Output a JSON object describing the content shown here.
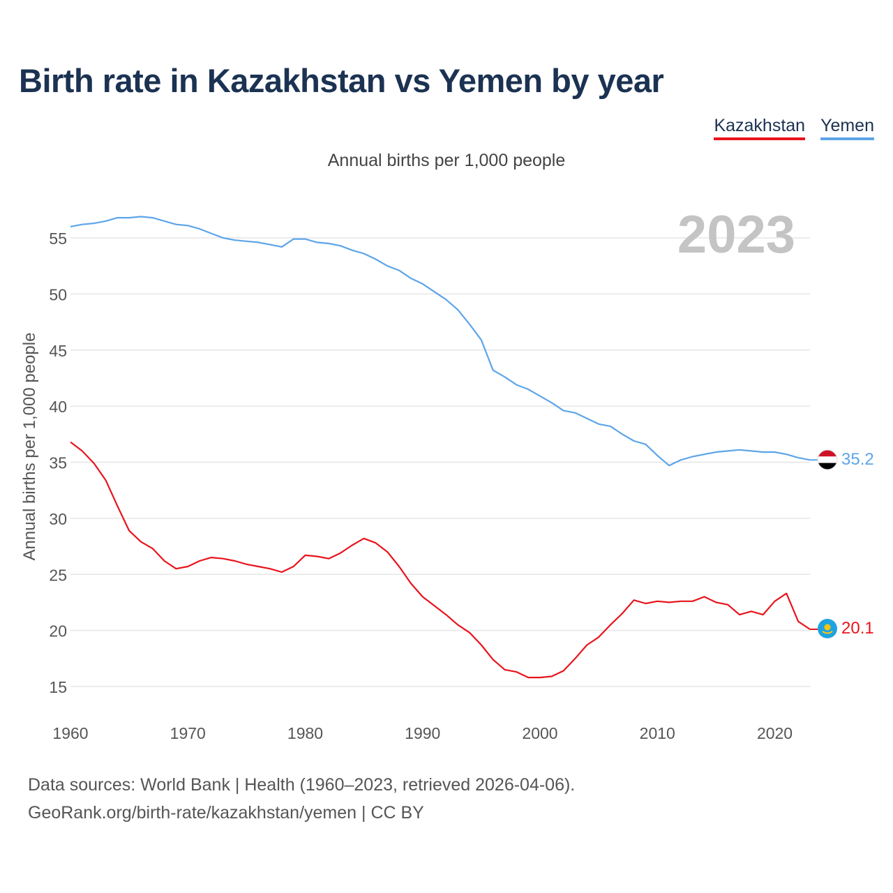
{
  "title": "Birth rate in Kazakhstan vs Yemen by year",
  "legend": {
    "kazakhstan": "Kazakhstan",
    "yemen": "Yemen"
  },
  "subtitle": "Annual births per 1,000 people",
  "footer": {
    "line1": "Data sources: World Bank | Health (1960–2023, retrieved 2026-04-06).",
    "line2": "GeoRank.org/birth-rate/kazakhstan/yemen | CC BY"
  },
  "colors": {
    "kazakhstan": "#e8141c",
    "yemen": "#5da5e8",
    "grid": "#e6e6e6",
    "year_watermark": "#c4c4c4"
  },
  "chart_data": {
    "type": "line",
    "title": "Birth rate in Kazakhstan vs Yemen by year",
    "xlabel": "",
    "ylabel": "Annual births per 1,000 people",
    "year_label": "2023",
    "xlim": [
      1960,
      2023
    ],
    "ylim": [
      13,
      58
    ],
    "x_ticks": [
      1960,
      1970,
      1980,
      1990,
      2000,
      2010,
      2020
    ],
    "y_ticks": [
      15,
      20,
      25,
      30,
      35,
      40,
      45,
      50,
      55
    ],
    "x": [
      1960,
      1961,
      1962,
      1963,
      1964,
      1965,
      1966,
      1967,
      1968,
      1969,
      1970,
      1971,
      1972,
      1973,
      1974,
      1975,
      1976,
      1977,
      1978,
      1979,
      1980,
      1981,
      1982,
      1983,
      1984,
      1985,
      1986,
      1987,
      1988,
      1989,
      1990,
      1991,
      1992,
      1993,
      1994,
      1995,
      1996,
      1997,
      1998,
      1999,
      2000,
      2001,
      2002,
      2003,
      2004,
      2005,
      2006,
      2007,
      2008,
      2009,
      2010,
      2011,
      2012,
      2013,
      2014,
      2015,
      2016,
      2017,
      2018,
      2019,
      2020,
      2021,
      2022,
      2023
    ],
    "series": [
      {
        "name": "Kazakhstan",
        "end_label": "20.1",
        "values": [
          36.8,
          36.0,
          34.9,
          33.4,
          31.1,
          28.9,
          27.9,
          27.3,
          26.2,
          25.5,
          25.7,
          26.2,
          26.5,
          26.4,
          26.2,
          25.9,
          25.7,
          25.5,
          25.2,
          25.7,
          26.7,
          26.6,
          26.4,
          26.9,
          27.6,
          28.2,
          27.8,
          27.0,
          25.7,
          24.2,
          23.0,
          22.2,
          21.4,
          20.5,
          19.8,
          18.7,
          17.4,
          16.5,
          16.3,
          15.8,
          15.8,
          15.9,
          16.4,
          17.5,
          18.7,
          19.4,
          20.5,
          21.5,
          22.7,
          22.4,
          22.6,
          22.5,
          22.6,
          22.6,
          23.0,
          22.5,
          22.3,
          21.4,
          21.7,
          21.4,
          22.6,
          23.3,
          20.8,
          20.1
        ]
      },
      {
        "name": "Yemen",
        "end_label": "35.2",
        "values": [
          56.0,
          56.2,
          56.3,
          56.5,
          56.8,
          56.8,
          56.9,
          56.8,
          56.5,
          56.2,
          56.1,
          55.8,
          55.4,
          55.0,
          54.8,
          54.7,
          54.6,
          54.4,
          54.2,
          54.9,
          54.9,
          54.6,
          54.5,
          54.3,
          53.9,
          53.6,
          53.1,
          52.5,
          52.1,
          51.4,
          50.9,
          50.2,
          49.5,
          48.6,
          47.3,
          45.9,
          43.2,
          42.6,
          41.9,
          41.5,
          40.9,
          40.3,
          39.6,
          39.4,
          38.9,
          38.4,
          38.2,
          37.5,
          36.9,
          36.6,
          35.6,
          34.7,
          35.2,
          35.5,
          35.7,
          35.9,
          36.0,
          36.1,
          36.0,
          35.9,
          35.9,
          35.7,
          35.4,
          35.2
        ]
      }
    ]
  }
}
